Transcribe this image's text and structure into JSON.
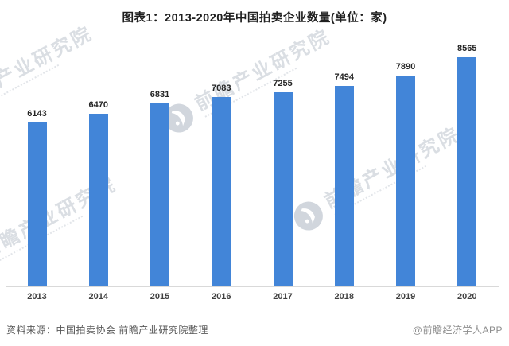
{
  "title": "图表1：2013-2020年中国拍卖企业数量(单位：家)",
  "chart_data": {
    "type": "bar",
    "title": "图表1：2013-2020年中国拍卖企业数量(单位：家)",
    "categories": [
      "2013",
      "2014",
      "2015",
      "2016",
      "2017",
      "2018",
      "2019",
      "2020"
    ],
    "values": [
      6143,
      6470,
      6831,
      7083,
      7255,
      7494,
      7890,
      8565
    ],
    "xlabel": "",
    "ylabel": "",
    "unit": "家",
    "ylim": [
      0,
      9000
    ],
    "grid": false,
    "legend": false,
    "value_labels": true,
    "bar_color": "#4285D8"
  },
  "footer": {
    "source": "资料来源：中国拍卖协会 前瞻产业研究院整理",
    "credit": "@前瞻经济学人APP"
  },
  "watermark": {
    "text": "前瞻产业研究院",
    "logo": "qianzhan-circle-logo"
  },
  "colors": {
    "bar": "#4285D8",
    "title_text": "#1F1F1F",
    "value_label": "#262626",
    "tick_label": "#404040",
    "source_text": "#595959",
    "credit_text": "#8C8C8C",
    "axis_line": "#D9D9D9",
    "watermark": "#D4D9DF",
    "background": "#FFFFFF"
  }
}
